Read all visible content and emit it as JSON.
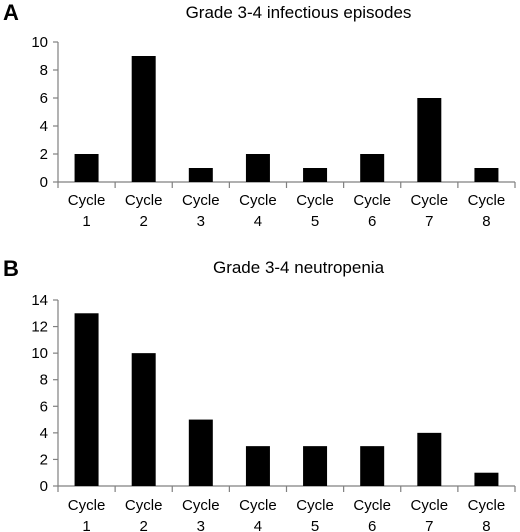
{
  "chart_data": [
    {
      "type": "bar",
      "panel_label": "A",
      "title": "Grade 3-4 infectious episodes",
      "categories": [
        [
          "Cycle",
          "1"
        ],
        [
          "Cycle",
          "2"
        ],
        [
          "Cycle",
          "3"
        ],
        [
          "Cycle",
          "4"
        ],
        [
          "Cycle",
          "5"
        ],
        [
          "Cycle",
          "6"
        ],
        [
          "Cycle",
          "7"
        ],
        [
          "Cycle",
          "8"
        ]
      ],
      "values": [
        2,
        9,
        1,
        2,
        1,
        2,
        6,
        1
      ],
      "ylim": [
        0,
        10
      ],
      "yticks": [
        "0",
        "2",
        "4",
        "6",
        "8",
        "10"
      ],
      "grid": false,
      "bar_color": "#000000"
    },
    {
      "type": "bar",
      "panel_label": "B",
      "title": "Grade 3-4 neutropenia",
      "categories": [
        [
          "Cycle",
          "1"
        ],
        [
          "Cycle",
          "2"
        ],
        [
          "Cycle",
          "3"
        ],
        [
          "Cycle",
          "4"
        ],
        [
          "Cycle",
          "5"
        ],
        [
          "Cycle",
          "6"
        ],
        [
          "Cycle",
          "7"
        ],
        [
          "Cycle",
          "8"
        ]
      ],
      "values": [
        13,
        10,
        5,
        3,
        3,
        3,
        4,
        1
      ],
      "ylim": [
        0,
        14
      ],
      "yticks": [
        "0",
        "2",
        "4",
        "6",
        "8",
        "10",
        "12",
        "14"
      ],
      "grid": false,
      "bar_color": "#000000"
    }
  ]
}
